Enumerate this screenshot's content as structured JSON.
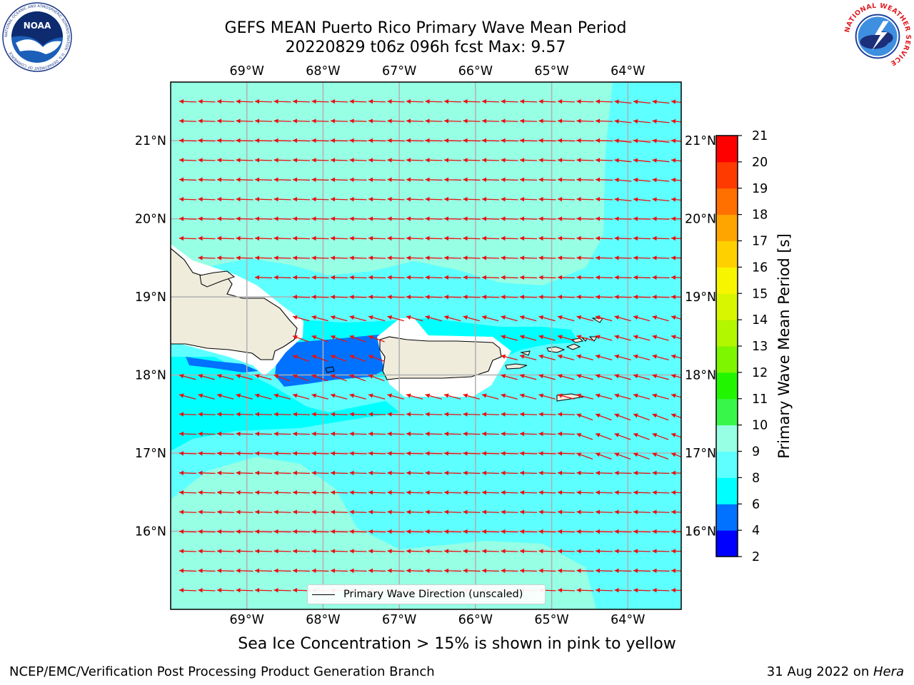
{
  "title": {
    "line1": "GEFS MEAN Puerto Rico Primary Wave Mean Period",
    "line2": "20220829 t06z 096h fcst   Max: 9.57"
  },
  "logos": {
    "left": {
      "icon": "noaa-logo-icon",
      "text": "NOAA",
      "ring_text": "NATIONAL OCEANIC AND ATMOSPHERIC ADMINISTRATION · U.S. DEPARTMENT OF COMMERCE"
    },
    "right": {
      "icon": "nws-logo-icon",
      "ring_text": "NATIONAL WEATHER SERVICE"
    }
  },
  "map": {
    "lon_range": [
      -70.0,
      -63.3
    ],
    "lat_range": [
      15.0,
      21.75
    ],
    "lon_ticks": [
      "69°W",
      "68°W",
      "67°W",
      "66°W",
      "65°W",
      "64°W"
    ],
    "lat_ticks": [
      "21°N",
      "20°N",
      "19°N",
      "18°N",
      "17°N",
      "16°N"
    ],
    "grid": true,
    "land_color": "#efecdc",
    "arrow_color": "#e81010",
    "legend": {
      "label": "Primary Wave Direction (unscaled)",
      "placement": "lower-center"
    }
  },
  "colorbar": {
    "label": "Primary Wave Mean Period [s]",
    "ticks": [
      "2",
      "4",
      "6",
      "8",
      "9",
      "10",
      "11",
      "12",
      "13",
      "14",
      "15",
      "16",
      "17",
      "18",
      "19",
      "20",
      "21"
    ],
    "colors": [
      "#0000ff",
      "#0072ff",
      "#00ffff",
      "#5effff",
      "#96ffe4",
      "#38f74a",
      "#21f600",
      "#7df600",
      "#b2f600",
      "#d8f600",
      "#f7f600",
      "#ffd000",
      "#ffa500",
      "#ff7000",
      "#ff3a00",
      "#ff0000"
    ]
  },
  "footer": {
    "note": "Sea Ice Concentration > 15% is shown in pink to yellow",
    "credit_left": "NCEP/EMC/Verification Post Processing Product Generation Branch",
    "credit_right_prefix": "31 Aug 2022 on ",
    "credit_right_machine": "Hera"
  }
}
